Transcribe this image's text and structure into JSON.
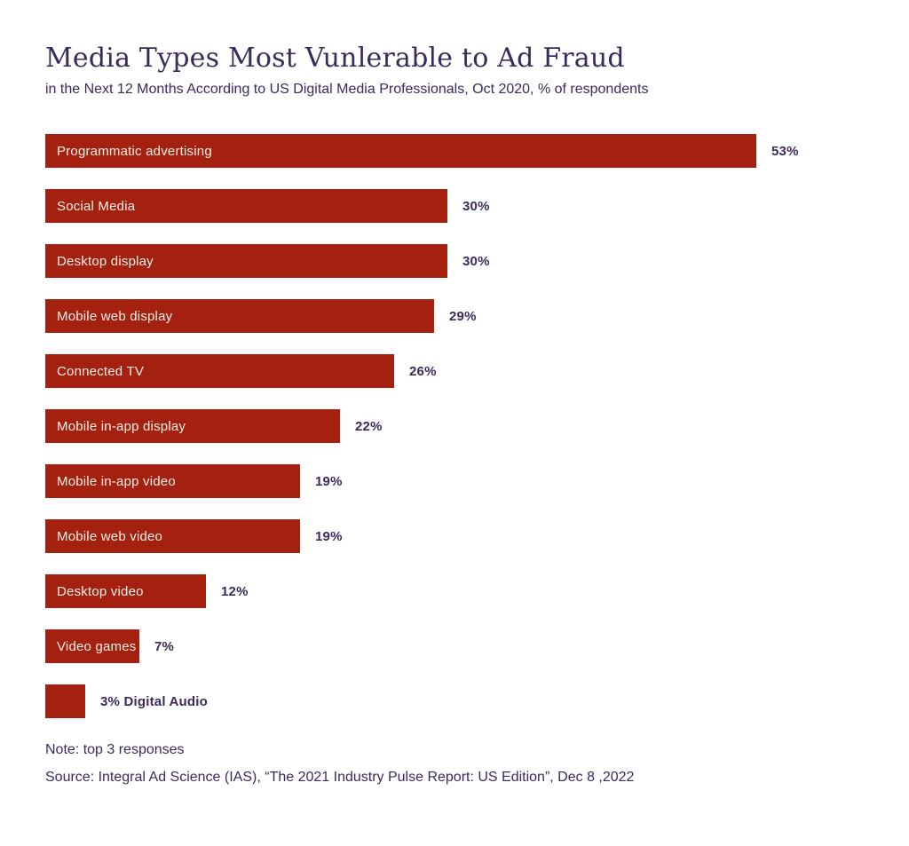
{
  "chart_data": {
    "type": "bar",
    "orientation": "horizontal",
    "title": "Media Types Most Vunlerable to Ad Fraud",
    "subtitle": "in the Next 12 Months According to US Digital Media Professionals, Oct 2020, % of respondents",
    "categories": [
      "Programmatic advertising",
      "Social Media",
      "Desktop display",
      "Mobile web display",
      "Connected TV",
      "Mobile in-app display",
      "Mobile in-app video",
      "Mobile web video",
      "Desktop video",
      "Video games",
      "Digital Audio"
    ],
    "values": [
      53,
      30,
      30,
      29,
      26,
      22,
      19,
      19,
      12,
      7,
      3
    ],
    "value_labels": [
      "53%",
      "30%",
      "30%",
      "29%",
      "26%",
      "22%",
      "19%",
      "19%",
      "12%",
      "7%",
      "3% Digital Audio"
    ],
    "label_positions": [
      "inside",
      "inside",
      "inside",
      "inside",
      "inside",
      "inside",
      "inside",
      "inside",
      "inside",
      "inside",
      "outside"
    ],
    "value_suffix": "%",
    "xlim": [
      0,
      53
    ],
    "grid": false,
    "legend": "none",
    "bar_color": "#A42110",
    "bar_label_color": "#F6EFE8",
    "text_color": "#3B2A5C",
    "note": "Note: top 3 responses",
    "source": "Source: Integral Ad Science (IAS), “The 2021 Industry Pulse Report: US Edition”, Dec 8 ,2022"
  }
}
